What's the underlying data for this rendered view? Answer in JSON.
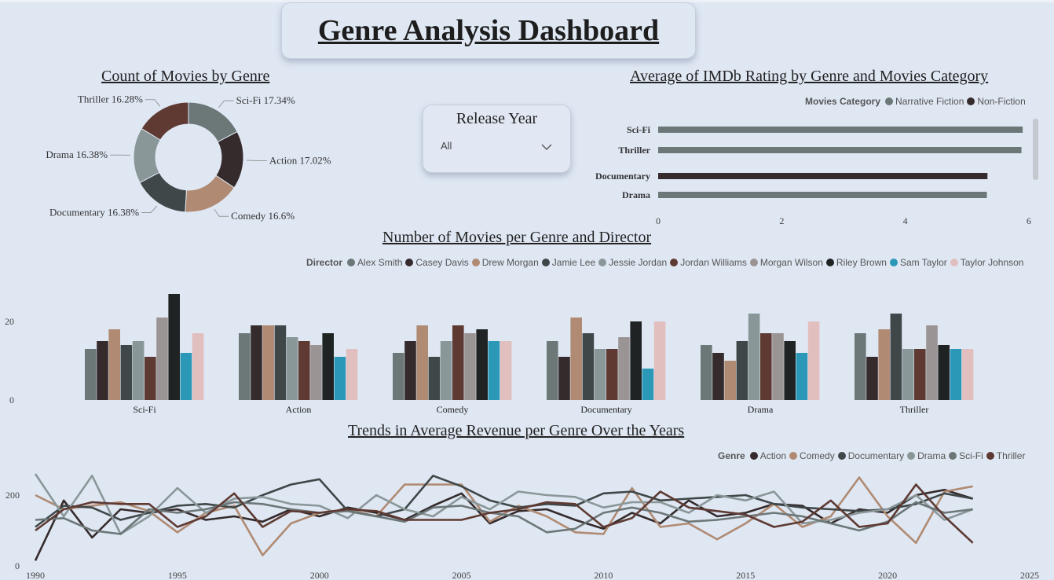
{
  "dashboard_title": "Genre Analysis Dashboard",
  "slicer": {
    "label": "Release Year",
    "value": "All"
  },
  "titles": {
    "donut": "Count of Movies by Genre",
    "rating": "Average of IMDb Rating by Genre and Movies Category",
    "director": "Number of Movies per Genre and Director",
    "trend": "Trends in Average Revenue per Genre Over the Years"
  },
  "colors": {
    "Sci-Fi": "#6c7778",
    "Action": "#352b2c",
    "Comedy": "#b08a72",
    "Documentary": "#3f4748",
    "Drama": "#8a9799",
    "Thriller": "#5e3a33",
    "Narrative Fiction": "#6c7778",
    "Non-Fiction": "#352b2c"
  },
  "chart_data": [
    {
      "id": "donut",
      "type": "pie",
      "title": "Count of Movies by Genre",
      "slices": [
        {
          "label": "Sci-Fi",
          "value": 17.34,
          "text": "Sci-Fi 17.34%"
        },
        {
          "label": "Action",
          "value": 17.02,
          "text": "Action 17.02%"
        },
        {
          "label": "Comedy",
          "value": 16.6,
          "text": "Comedy 16.6%"
        },
        {
          "label": "Documentary",
          "value": 16.38,
          "text": "Documentary 16.38%"
        },
        {
          "label": "Drama",
          "value": 16.38,
          "text": "Drama 16.38%"
        },
        {
          "label": "Thriller",
          "value": 16.28,
          "text": "Thriller 16.28%"
        }
      ]
    },
    {
      "id": "rating",
      "type": "bar",
      "orientation": "horizontal",
      "title": "Average of IMDb Rating by Genre and Movies Category",
      "legend_title": "Movies Category",
      "series_names": [
        "Narrative Fiction",
        "Non-Fiction"
      ],
      "categories": [
        "Sci-Fi",
        "Thriller",
        "Documentary",
        "Drama"
      ],
      "values": [
        5.9,
        5.88,
        5.33,
        5.32
      ],
      "series": [
        "Narrative Fiction",
        "Narrative Fiction",
        "Non-Fiction",
        "Narrative Fiction"
      ],
      "xlim": [
        0,
        6
      ],
      "xticks": [
        0,
        2,
        4,
        6
      ]
    },
    {
      "id": "director",
      "type": "bar",
      "title": "Number of Movies per Genre and Director",
      "legend_title": "Director",
      "categories": [
        "Sci-Fi",
        "Action",
        "Comedy",
        "Documentary",
        "Drama",
        "Thriller"
      ],
      "ylim": [
        0,
        28
      ],
      "yticks": [
        0,
        20
      ],
      "series": [
        {
          "name": "Alex Smith",
          "color": "#6c7778",
          "values": [
            13,
            17,
            12,
            15,
            14,
            17
          ]
        },
        {
          "name": "Casey Davis",
          "color": "#352b2c",
          "values": [
            15,
            19,
            15,
            11,
            12,
            11
          ]
        },
        {
          "name": "Drew Morgan",
          "color": "#b08a72",
          "values": [
            18,
            19,
            19,
            21,
            10,
            18
          ]
        },
        {
          "name": "Jamie Lee",
          "color": "#3f4748",
          "values": [
            14,
            19,
            11,
            17,
            15,
            22
          ]
        },
        {
          "name": "Jessie Jordan",
          "color": "#8a9799",
          "values": [
            15,
            16,
            15,
            13,
            22,
            13
          ]
        },
        {
          "name": "Jordan Williams",
          "color": "#5e3a33",
          "values": [
            11,
            15,
            19,
            13,
            17,
            13
          ]
        },
        {
          "name": "Morgan Wilson",
          "color": "#9a9594",
          "values": [
            21,
            14,
            17,
            16,
            17,
            19
          ]
        },
        {
          "name": "Riley Brown",
          "color": "#1f2324",
          "values": [
            27,
            17,
            18,
            20,
            15,
            14
          ]
        },
        {
          "name": "Sam Taylor",
          "color": "#2b98b8",
          "values": [
            12,
            11,
            15,
            8,
            12,
            13
          ]
        },
        {
          "name": "Taylor Johnson",
          "color": "#e2bfbf",
          "values": [
            17,
            13,
            15,
            20,
            20,
            13
          ]
        }
      ]
    },
    {
      "id": "trend",
      "type": "line",
      "title": "Trends in Average Revenue per Genre Over the Years",
      "legend_title": "Genre",
      "xlim": [
        1990,
        2025
      ],
      "xticks": [
        1990,
        1995,
        2000,
        2005,
        2010,
        2015,
        2020,
        2025
      ],
      "ylim": [
        0,
        290
      ],
      "yticks": [
        0,
        200
      ],
      "x": [
        1990,
        1991,
        1992,
        1993,
        1994,
        1995,
        1996,
        1997,
        1998,
        1999,
        2000,
        2001,
        2002,
        2003,
        2004,
        2005,
        2006,
        2007,
        2008,
        2009,
        2010,
        2011,
        2012,
        2013,
        2014,
        2015,
        2016,
        2017,
        2018,
        2019,
        2020,
        2021,
        2022,
        2023
      ],
      "series": [
        {
          "name": "Action",
          "color": "#352b2c",
          "values": [
            15,
            185,
            80,
            160,
            150,
            160,
            130,
            140,
            125,
            160,
            140,
            165,
            150,
            130,
            170,
            205,
            120,
            155,
            160,
            130,
            105,
            150,
            120,
            185,
            140,
            150,
            175,
            170,
            120,
            160,
            150,
            200,
            215,
            190
          ]
        },
        {
          "name": "Comedy",
          "color": "#b08a72",
          "values": [
            200,
            160,
            170,
            180,
            155,
            95,
            150,
            170,
            30,
            120,
            150,
            160,
            140,
            230,
            230,
            230,
            125,
            170,
            140,
            95,
            90,
            220,
            110,
            120,
            75,
            120,
            175,
            110,
            140,
            250,
            140,
            65,
            210,
            225
          ]
        },
        {
          "name": "Documentary",
          "color": "#3f4748",
          "values": [
            110,
            170,
            165,
            130,
            150,
            170,
            175,
            165,
            200,
            230,
            245,
            155,
            140,
            160,
            255,
            225,
            185,
            165,
            175,
            170,
            205,
            210,
            185,
            190,
            195,
            200,
            175,
            165,
            160,
            155,
            160,
            175,
            205,
            190
          ]
        },
        {
          "name": "Drama",
          "color": "#8a9799",
          "values": [
            260,
            140,
            255,
            90,
            140,
            220,
            150,
            190,
            195,
            175,
            170,
            135,
            200,
            160,
            140,
            195,
            160,
            210,
            200,
            195,
            165,
            180,
            180,
            150,
            200,
            185,
            210,
            120,
            130,
            150,
            160,
            200,
            130,
            160
          ]
        },
        {
          "name": "Sci-Fi",
          "color": "#6c7778",
          "values": [
            130,
            135,
            100,
            90,
            160,
            150,
            160,
            180,
            175,
            160,
            150,
            155,
            140,
            125,
            165,
            170,
            150,
            140,
            95,
            105,
            150,
            165,
            150,
            125,
            130,
            140,
            150,
            140,
            120,
            100,
            125,
            180,
            150,
            160
          ]
        },
        {
          "name": "Thriller",
          "color": "#5e3a33",
          "values": [
            100,
            160,
            180,
            175,
            175,
            110,
            140,
            205,
            110,
            155,
            150,
            160,
            155,
            130,
            130,
            130,
            150,
            160,
            180,
            175,
            110,
            135,
            210,
            165,
            155,
            145,
            110,
            125,
            185,
            110,
            120,
            230,
            140,
            65
          ]
        }
      ]
    }
  ]
}
